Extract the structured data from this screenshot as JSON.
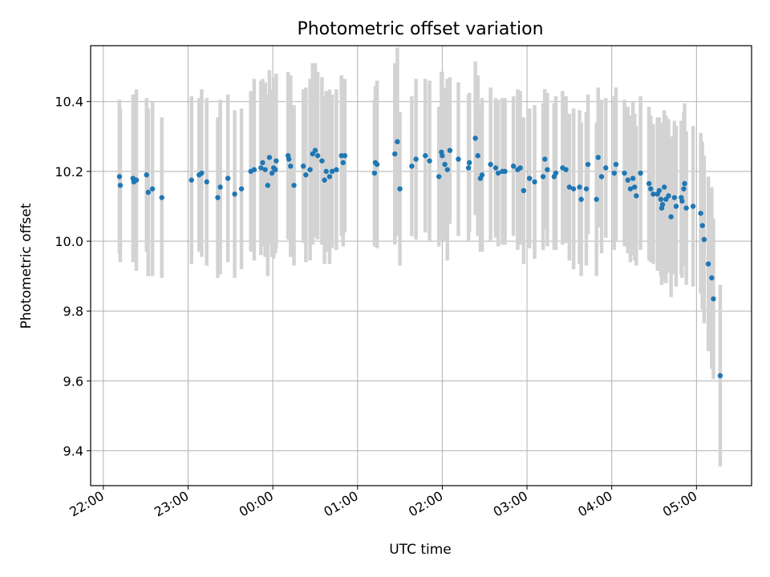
{
  "chart_data": {
    "type": "scatter",
    "title": "Photometric offset variation",
    "xlabel": "UTC time",
    "ylabel": "Photometric offset",
    "grid": true,
    "errorbar_color": "#d3d3d3",
    "point_color": "#1f77b4",
    "x_unit": "hours after 22:00 UTC",
    "xlim": [
      -0.15,
      7.65
    ],
    "ylim": [
      9.3,
      10.56
    ],
    "x_ticks": [
      {
        "value": 0,
        "label": "22:00"
      },
      {
        "value": 1,
        "label": "23:00"
      },
      {
        "value": 2,
        "label": "00:00"
      },
      {
        "value": 3,
        "label": "01:00"
      },
      {
        "value": 4,
        "label": "02:00"
      },
      {
        "value": 5,
        "label": "03:00"
      },
      {
        "value": 6,
        "label": "04:00"
      },
      {
        "value": 7,
        "label": "05:00"
      }
    ],
    "y_ticks": [
      {
        "value": 9.4,
        "label": "9.4"
      },
      {
        "value": 9.6,
        "label": "9.6"
      },
      {
        "value": 9.8,
        "label": "9.8"
      },
      {
        "value": 10.0,
        "label": "10.0"
      },
      {
        "value": 10.2,
        "label": "10.2"
      },
      {
        "value": 10.4,
        "label": "10.4"
      }
    ],
    "points": [
      [
        0.19,
        10.185,
        0.22
      ],
      [
        0.2,
        10.16,
        0.22
      ],
      [
        0.35,
        10.18,
        0.24
      ],
      [
        0.36,
        10.17,
        0.22
      ],
      [
        0.39,
        10.175,
        0.26
      ],
      [
        0.51,
        10.19,
        0.22
      ],
      [
        0.53,
        10.14,
        0.24
      ],
      [
        0.58,
        10.15,
        0.25
      ],
      [
        0.69,
        10.125,
        0.23
      ],
      [
        1.04,
        10.175,
        0.24
      ],
      [
        1.13,
        10.19,
        0.22
      ],
      [
        1.16,
        10.195,
        0.24
      ],
      [
        1.22,
        10.17,
        0.24
      ],
      [
        1.35,
        10.125,
        0.23
      ],
      [
        1.38,
        10.155,
        0.25
      ],
      [
        1.47,
        10.18,
        0.24
      ],
      [
        1.55,
        10.135,
        0.24
      ],
      [
        1.63,
        10.15,
        0.23
      ],
      [
        1.74,
        10.2,
        0.23
      ],
      [
        1.78,
        10.205,
        0.26
      ],
      [
        1.86,
        10.21,
        0.25
      ],
      [
        1.88,
        10.225,
        0.24
      ],
      [
        1.91,
        10.205,
        0.25
      ],
      [
        1.94,
        10.16,
        0.26
      ],
      [
        1.96,
        10.24,
        0.25
      ],
      [
        1.99,
        10.195,
        0.24
      ],
      [
        2.01,
        10.21,
        0.26
      ],
      [
        2.04,
        10.23,
        0.25
      ],
      [
        2.03,
        10.205,
        0.24
      ],
      [
        2.18,
        10.245,
        0.24
      ],
      [
        2.19,
        10.235,
        0.23
      ],
      [
        2.21,
        10.215,
        0.26
      ],
      [
        2.25,
        10.16,
        0.23
      ],
      [
        2.36,
        10.215,
        0.22
      ],
      [
        2.39,
        10.19,
        0.25
      ],
      [
        2.44,
        10.205,
        0.26
      ],
      [
        2.47,
        10.25,
        0.26
      ],
      [
        2.5,
        10.26,
        0.25
      ],
      [
        2.53,
        10.245,
        0.24
      ],
      [
        2.58,
        10.23,
        0.24
      ],
      [
        2.61,
        10.175,
        0.24
      ],
      [
        2.63,
        10.2,
        0.23
      ],
      [
        2.67,
        10.185,
        0.25
      ],
      [
        2.7,
        10.2,
        0.22
      ],
      [
        2.75,
        10.205,
        0.23
      ],
      [
        2.81,
        10.245,
        0.23
      ],
      [
        2.83,
        10.225,
        0.24
      ],
      [
        2.85,
        10.245,
        0.22
      ],
      [
        3.2,
        10.195,
        0.21
      ],
      [
        3.21,
        10.225,
        0.22
      ],
      [
        3.23,
        10.22,
        0.24
      ],
      [
        3.44,
        10.25,
        0.26
      ],
      [
        3.47,
        10.285,
        0.27
      ],
      [
        3.5,
        10.15,
        0.22
      ],
      [
        3.64,
        10.215,
        0.2
      ],
      [
        3.69,
        10.235,
        0.23
      ],
      [
        3.8,
        10.245,
        0.22
      ],
      [
        3.85,
        10.23,
        0.23
      ],
      [
        3.96,
        10.185,
        0.2
      ],
      [
        3.99,
        10.255,
        0.23
      ],
      [
        4.0,
        10.245,
        0.24
      ],
      [
        4.03,
        10.22,
        0.22
      ],
      [
        4.06,
        10.205,
        0.26
      ],
      [
        4.09,
        10.26,
        0.21
      ],
      [
        4.19,
        10.235,
        0.22
      ],
      [
        4.31,
        10.21,
        0.21
      ],
      [
        4.32,
        10.225,
        0.2
      ],
      [
        4.39,
        10.295,
        0.22
      ],
      [
        4.42,
        10.245,
        0.23
      ],
      [
        4.45,
        10.18,
        0.21
      ],
      [
        4.47,
        10.19,
        0.22
      ],
      [
        4.57,
        10.22,
        0.22
      ],
      [
        4.63,
        10.21,
        0.2
      ],
      [
        4.66,
        10.195,
        0.21
      ],
      [
        4.71,
        10.2,
        0.21
      ],
      [
        4.74,
        10.2,
        0.21
      ],
      [
        4.84,
        10.215,
        0.2
      ],
      [
        4.89,
        10.205,
        0.23
      ],
      [
        4.92,
        10.21,
        0.22
      ],
      [
        4.96,
        10.145,
        0.21
      ],
      [
        5.03,
        10.18,
        0.2
      ],
      [
        5.09,
        10.17,
        0.22
      ],
      [
        5.19,
        10.185,
        0.21
      ],
      [
        5.21,
        10.235,
        0.2
      ],
      [
        5.24,
        10.205,
        0.22
      ],
      [
        5.32,
        10.185,
        0.21
      ],
      [
        5.34,
        10.195,
        0.22
      ],
      [
        5.42,
        10.21,
        0.22
      ],
      [
        5.46,
        10.205,
        0.21
      ],
      [
        5.5,
        10.155,
        0.21
      ],
      [
        5.55,
        10.15,
        0.23
      ],
      [
        5.62,
        10.155,
        0.22
      ],
      [
        5.64,
        10.12,
        0.22
      ],
      [
        5.7,
        10.15,
        0.22
      ],
      [
        5.72,
        10.22,
        0.2
      ],
      [
        5.82,
        10.12,
        0.22
      ],
      [
        5.84,
        10.24,
        0.2
      ],
      [
        5.88,
        10.185,
        0.22
      ],
      [
        5.93,
        10.21,
        0.2
      ],
      [
        6.03,
        10.195,
        0.22
      ],
      [
        6.05,
        10.22,
        0.22
      ],
      [
        6.15,
        10.195,
        0.21
      ],
      [
        6.19,
        10.175,
        0.21
      ],
      [
        6.22,
        10.15,
        0.21
      ],
      [
        6.25,
        10.18,
        0.22
      ],
      [
        6.27,
        10.155,
        0.21
      ],
      [
        6.29,
        10.13,
        0.2
      ],
      [
        6.34,
        10.195,
        0.22
      ],
      [
        6.44,
        10.165,
        0.22
      ],
      [
        6.46,
        10.15,
        0.21
      ],
      [
        6.49,
        10.135,
        0.2
      ],
      [
        6.54,
        10.135,
        0.22
      ],
      [
        6.56,
        10.145,
        0.21
      ],
      [
        6.58,
        10.12,
        0.22
      ],
      [
        6.59,
        10.095,
        0.22
      ],
      [
        6.6,
        10.105,
        0.22
      ],
      [
        6.62,
        10.155,
        0.22
      ],
      [
        6.64,
        10.12,
        0.24
      ],
      [
        6.67,
        10.13,
        0.22
      ],
      [
        6.7,
        10.07,
        0.23
      ],
      [
        6.74,
        10.125,
        0.22
      ],
      [
        6.76,
        10.1,
        0.23
      ],
      [
        6.82,
        10.125,
        0.22
      ],
      [
        6.83,
        10.115,
        0.22
      ],
      [
        6.85,
        10.15,
        0.22
      ],
      [
        6.86,
        10.165,
        0.23
      ],
      [
        6.88,
        10.095,
        0.22
      ],
      [
        6.96,
        10.1,
        0.23
      ],
      [
        7.05,
        10.08,
        0.23
      ],
      [
        7.07,
        10.045,
        0.24
      ],
      [
        7.09,
        10.005,
        0.24
      ],
      [
        7.14,
        9.935,
        0.25
      ],
      [
        7.18,
        9.895,
        0.26
      ],
      [
        7.2,
        9.835,
        0.23
      ],
      [
        7.28,
        9.615,
        0.26
      ]
    ]
  }
}
